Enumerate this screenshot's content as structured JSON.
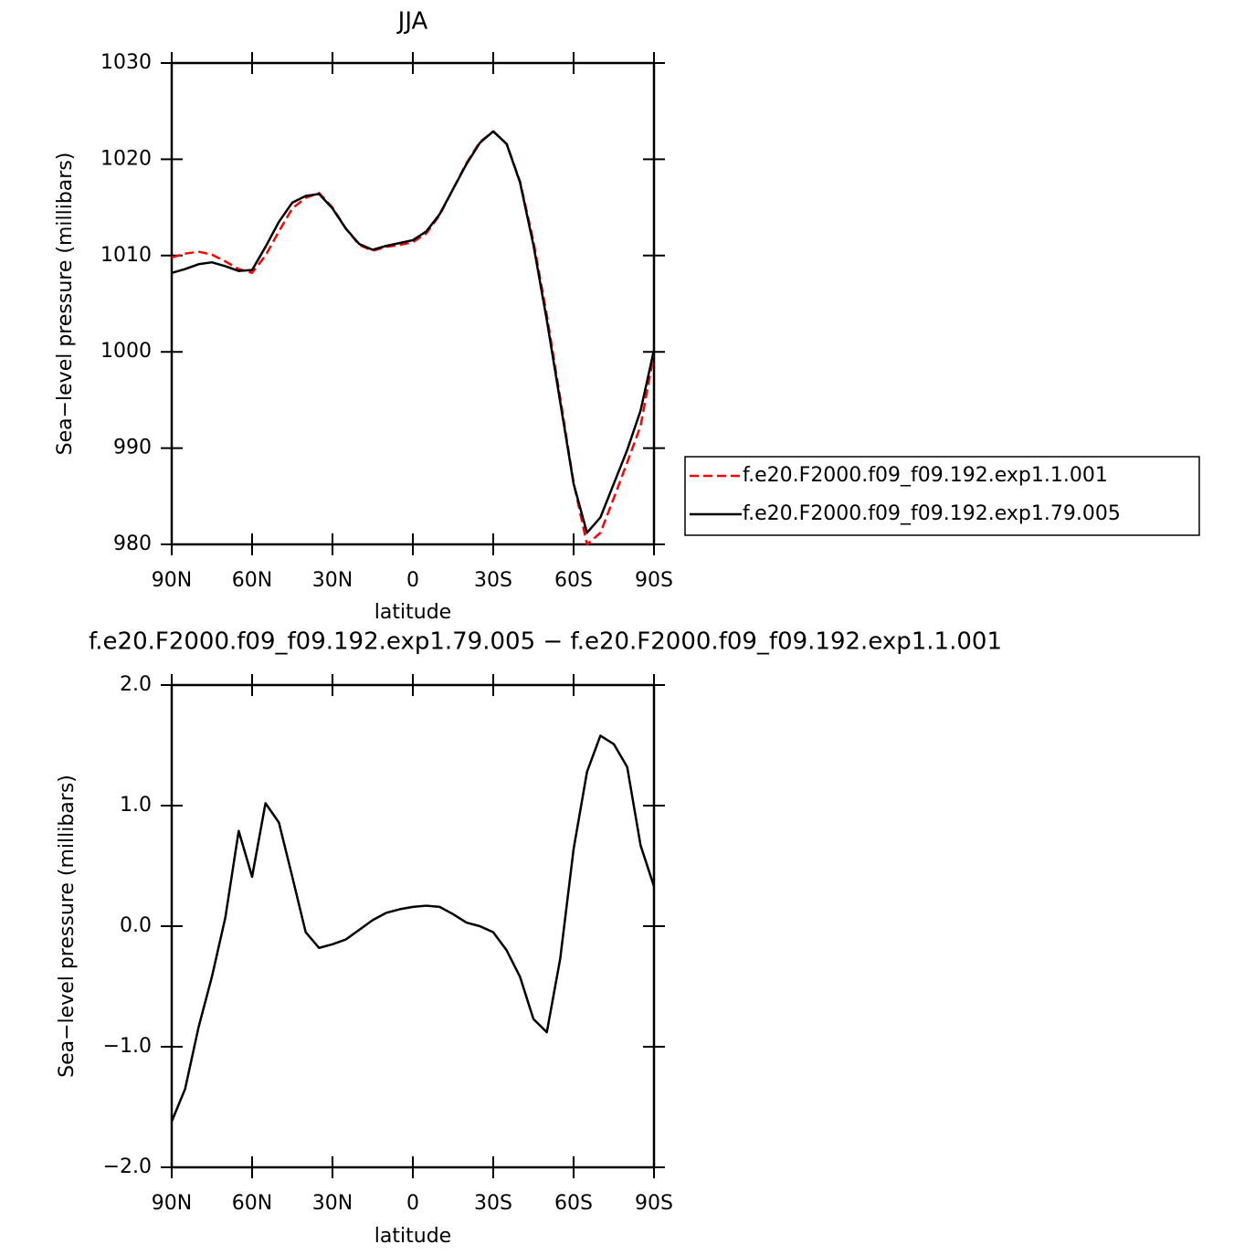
{
  "chart_data": [
    {
      "type": "line",
      "title": "JJA",
      "xlabel": "latitude",
      "ylabel": "Sea−level pressure (millibars)",
      "x": [
        90,
        85,
        80,
        75,
        70,
        65,
        60,
        55,
        50,
        45,
        40,
        35,
        30,
        25,
        20,
        15,
        10,
        5,
        0,
        -5,
        -10,
        -15,
        -20,
        -25,
        -30,
        -35,
        -40,
        -45,
        -50,
        -55,
        -60,
        -65,
        -70,
        -75,
        -80,
        -85,
        -90
      ],
      "series": [
        {
          "name": "f.e20.F2000.f09_f09.192.exp1.1.001",
          "color": "#ff0000",
          "dash": true,
          "values": [
            1009.8,
            1010.2,
            1010.4,
            1010.1,
            1009.4,
            1008.6,
            1008.2,
            1010.0,
            1012.5,
            1014.9,
            1016.0,
            1016.5,
            1015.0,
            1012.8,
            1011.1,
            1010.5,
            1010.9,
            1011.1,
            1011.4,
            1012.3,
            1014.2,
            1016.9,
            1019.6,
            1021.8,
            1022.9,
            1021.6,
            1017.7,
            1011.5,
            1003.8,
            995.2,
            986.4,
            980.0,
            981.2,
            984.8,
            988.5,
            992.3,
            999.8
          ]
        },
        {
          "name": "f.e20.F2000.f09_f09.192.exp1.79.005",
          "color": "#000000",
          "dash": false,
          "values": [
            1008.2,
            1008.6,
            1009.1,
            1009.3,
            1008.9,
            1008.4,
            1008.5,
            1010.9,
            1013.5,
            1015.5,
            1016.2,
            1016.4,
            1014.9,
            1012.8,
            1011.2,
            1010.6,
            1011.0,
            1011.3,
            1011.6,
            1012.5,
            1014.3,
            1016.9,
            1019.5,
            1021.7,
            1022.9,
            1021.6,
            1017.6,
            1011.1,
            1003.3,
            994.8,
            986.3,
            981.2,
            982.8,
            986.3,
            989.8,
            993.9,
            1000.2
          ]
        }
      ],
      "xlim": [
        90,
        -90
      ],
      "xticks": [
        {
          "value": 90,
          "label": "90N"
        },
        {
          "value": 60,
          "label": "60N"
        },
        {
          "value": 30,
          "label": "30N"
        },
        0,
        {
          "value": -30,
          "label": "30S"
        },
        {
          "value": -60,
          "label": "60S"
        },
        {
          "value": -90,
          "label": "90S"
        }
      ],
      "ylim": [
        980,
        1030
      ],
      "yticks": [
        980,
        990,
        1000,
        1010,
        1020,
        1030
      ],
      "legend": "right"
    },
    {
      "type": "line",
      "title": "f.e20.F2000.f09_f09.192.exp1.79.005 − f.e20.F2000.f09_f09.192.exp1.1.001",
      "xlabel": "latitude",
      "ylabel": "Sea−level pressure (millibars)",
      "x": [
        90,
        85,
        80,
        75,
        70,
        65,
        60,
        55,
        50,
        45,
        40,
        35,
        30,
        25,
        20,
        15,
        10,
        5,
        0,
        -5,
        -10,
        -15,
        -20,
        -25,
        -30,
        -35,
        -40,
        -45,
        -50,
        -55,
        -60,
        -65,
        -70,
        -75,
        -80,
        -85,
        -90
      ],
      "series": [
        {
          "color": "#000000",
          "dash": false,
          "values": [
            -1.62,
            -1.35,
            -0.84,
            -0.42,
            0.07,
            0.79,
            0.41,
            1.02,
            0.86,
            0.41,
            -0.05,
            -0.18,
            -0.15,
            -0.11,
            -0.03,
            0.05,
            0.11,
            0.14,
            0.16,
            0.17,
            0.16,
            0.1,
            0.03,
            0.0,
            -0.05,
            -0.2,
            -0.42,
            -0.77,
            -0.88,
            -0.27,
            0.64,
            1.28,
            1.58,
            1.51,
            1.32,
            0.67,
            0.33
          ]
        }
      ],
      "xlim": [
        90,
        -90
      ],
      "xticks": [
        {
          "value": 90,
          "label": "90N"
        },
        {
          "value": 60,
          "label": "60N"
        },
        {
          "value": 30,
          "label": "30N"
        },
        0,
        {
          "value": -30,
          "label": "30S"
        },
        {
          "value": -60,
          "label": "60S"
        },
        {
          "value": -90,
          "label": "90S"
        }
      ],
      "ylim": [
        -2,
        2
      ],
      "yticks": [
        {
          "value": -2,
          "label": "−2.0"
        },
        {
          "value": -1,
          "label": "−1.0"
        },
        {
          "value": 0,
          "label": "0.0"
        },
        {
          "value": 1,
          "label": "1.0"
        },
        {
          "value": 2,
          "label": "2.0"
        }
      ]
    }
  ]
}
